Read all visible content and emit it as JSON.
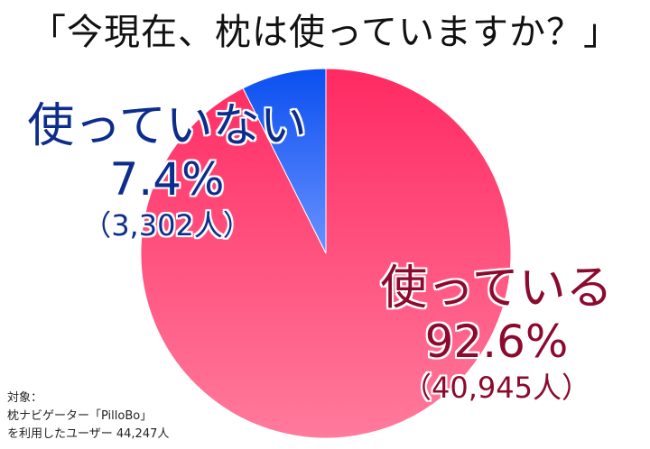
{
  "title": "「今現在、枕は使っていますか？」",
  "chart_data": {
    "type": "pie",
    "title": "「今現在、枕は使っていますか？」",
    "categories": [
      "使っている",
      "使っていない"
    ],
    "values": [
      92.6,
      7.4
    ],
    "counts": [
      40945,
      3302
    ],
    "labels": [
      {
        "name": "使っている",
        "percent": "92.6%",
        "count": "（40,945人）",
        "color": "#ff3366"
      },
      {
        "name": "使っていない",
        "percent": "7.4%",
        "count": "（3,302人）",
        "color": "#1a55e8"
      }
    ],
    "total": 44247
  },
  "labels": {
    "not_using": {
      "name": "使っていない",
      "percent": "7.4%",
      "count": "（3,302人）"
    },
    "using": {
      "name": "使っている",
      "percent": "92.6%",
      "count": "（40,945人）"
    }
  },
  "note": {
    "line1": "対象：",
    "line2": "枕ナビゲーター「PilloBo」",
    "line3": "を利用したユーザー 44,247人"
  },
  "colors": {
    "using_top": "#ff2a62",
    "using_bottom": "#ff7a9c",
    "not_using_top": "#0a4ff0",
    "not_using_bottom": "#6a92ff",
    "label_blue": "#0d2d8c",
    "label_red": "#8b0a2e"
  }
}
